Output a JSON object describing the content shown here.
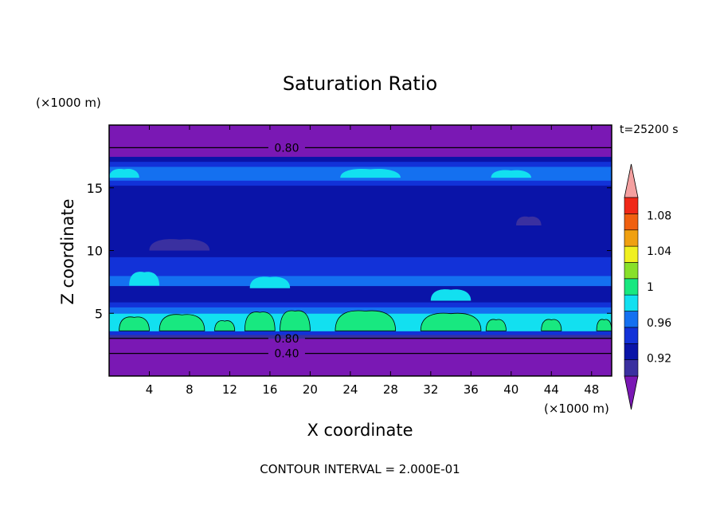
{
  "chart_data": {
    "type": "heatmap",
    "title": "Saturation Ratio",
    "xlabel": "X coordinate",
    "ylabel": "Z coordinate",
    "x_unit": "(×1000 m)",
    "y_unit": "(×1000 m)",
    "time_label": "t=25200 s",
    "footer": "CONTOUR INTERVAL = 2.000E-01",
    "xlim": [
      0,
      50
    ],
    "ylim": [
      0,
      20
    ],
    "x_ticks": [
      4,
      8,
      12,
      16,
      20,
      24,
      28,
      32,
      36,
      40,
      44,
      48
    ],
    "y_ticks": [
      5,
      10,
      15
    ],
    "x_tick_labels": [
      "4",
      "8",
      "12",
      "16",
      "20",
      "24",
      "28",
      "32",
      "36",
      "40",
      "44",
      "48"
    ],
    "y_tick_labels": [
      "5",
      "10",
      "15"
    ],
    "colorbar": {
      "labels": [
        "0.92",
        "0.96",
        "1",
        "1.04",
        "1.08"
      ],
      "label_values": [
        0.92,
        0.96,
        1.0,
        1.04,
        1.08
      ],
      "range": [
        0.9,
        1.1
      ],
      "step": 0.02,
      "colors": [
        "#7a18b4",
        "#3a30a0",
        "#0a14a8",
        "#1232d8",
        "#1470f0",
        "#12e0f0",
        "#18e880",
        "#88e02a",
        "#f0f020",
        "#f0a010",
        "#f06010",
        "#f02818",
        "#f4a0a0"
      ],
      "extend_both": true
    },
    "bands": [
      {
        "z0": 0.0,
        "z1": 3.0,
        "value": 0.86
      },
      {
        "z0": 3.0,
        "z1": 3.3,
        "value": 0.91
      },
      {
        "z0": 3.3,
        "z1": 3.6,
        "value": 0.95
      },
      {
        "z0": 3.6,
        "z1": 5.0,
        "value": 0.985
      },
      {
        "z0": 5.0,
        "z1": 5.5,
        "value": 0.965
      },
      {
        "z0": 5.5,
        "z1": 5.9,
        "value": 0.945
      },
      {
        "z0": 5.9,
        "z1": 7.2,
        "value": 0.935
      },
      {
        "z0": 7.2,
        "z1": 8.0,
        "value": 0.975
      },
      {
        "z0": 8.0,
        "z1": 9.5,
        "value": 0.955
      },
      {
        "z0": 9.5,
        "z1": 13.5,
        "value": 0.925
      },
      {
        "z0": 13.5,
        "z1": 15.2,
        "value": 0.93
      },
      {
        "z0": 15.2,
        "z1": 15.6,
        "value": 0.955
      },
      {
        "z0": 15.6,
        "z1": 16.7,
        "value": 0.975
      },
      {
        "z0": 16.7,
        "z1": 17.1,
        "value": 0.955
      },
      {
        "z0": 17.1,
        "z1": 17.5,
        "value": 0.925
      },
      {
        "z0": 17.5,
        "z1": 20.0,
        "value": 0.85
      }
    ],
    "patches": [
      {
        "x0": 1.0,
        "x1": 4.0,
        "z0": 3.6,
        "z1": 4.8,
        "value": 1.005
      },
      {
        "x0": 5.0,
        "x1": 9.5,
        "z0": 3.6,
        "z1": 5.0,
        "value": 1.005
      },
      {
        "x0": 10.5,
        "x1": 12.5,
        "z0": 3.6,
        "z1": 4.5,
        "value": 1.005
      },
      {
        "x0": 13.5,
        "x1": 16.5,
        "z0": 3.6,
        "z1": 5.2,
        "value": 1.005
      },
      {
        "x0": 17.0,
        "x1": 20.0,
        "z0": 3.6,
        "z1": 5.3,
        "value": 1.005
      },
      {
        "x0": 22.5,
        "x1": 28.5,
        "z0": 3.6,
        "z1": 5.3,
        "value": 1.005
      },
      {
        "x0": 31.0,
        "x1": 37.0,
        "z0": 3.6,
        "z1": 5.1,
        "value": 1.005
      },
      {
        "x0": 37.5,
        "x1": 39.5,
        "z0": 3.6,
        "z1": 4.6,
        "value": 1.005
      },
      {
        "x0": 43.0,
        "x1": 45.0,
        "z0": 3.6,
        "z1": 4.6,
        "value": 1.005
      },
      {
        "x0": 48.5,
        "x1": 50.0,
        "z0": 3.6,
        "z1": 4.6,
        "value": 1.005
      },
      {
        "x0": 23.0,
        "x1": 29.0,
        "z0": 15.8,
        "z1": 16.6,
        "value": 0.985
      },
      {
        "x0": 38.0,
        "x1": 42.0,
        "z0": 15.8,
        "z1": 16.5,
        "value": 0.985
      },
      {
        "x0": 0.0,
        "x1": 3.0,
        "z0": 15.8,
        "z1": 16.6,
        "value": 0.985
      },
      {
        "x0": 40.5,
        "x1": 43.0,
        "z0": 12.0,
        "z1": 12.8,
        "value": 0.905
      },
      {
        "x0": 4.0,
        "x1": 10.0,
        "z0": 10.0,
        "z1": 11.0,
        "value": 0.905
      },
      {
        "x0": 2.0,
        "x1": 5.0,
        "z0": 7.2,
        "z1": 8.4,
        "value": 0.99
      },
      {
        "x0": 14.0,
        "x1": 18.0,
        "z0": 7.0,
        "z1": 8.0,
        "value": 0.99
      },
      {
        "x0": 32.0,
        "x1": 36.0,
        "z0": 6.0,
        "z1": 7.0,
        "value": 0.99
      }
    ],
    "contour_lines": [
      {
        "z": 18.2,
        "label": "0.80",
        "label_x": 16.0
      },
      {
        "z": 3.0,
        "label": "0.80",
        "label_x": 16.0
      },
      {
        "z": 1.8,
        "label": "0.40",
        "label_x": 16.0
      }
    ]
  }
}
